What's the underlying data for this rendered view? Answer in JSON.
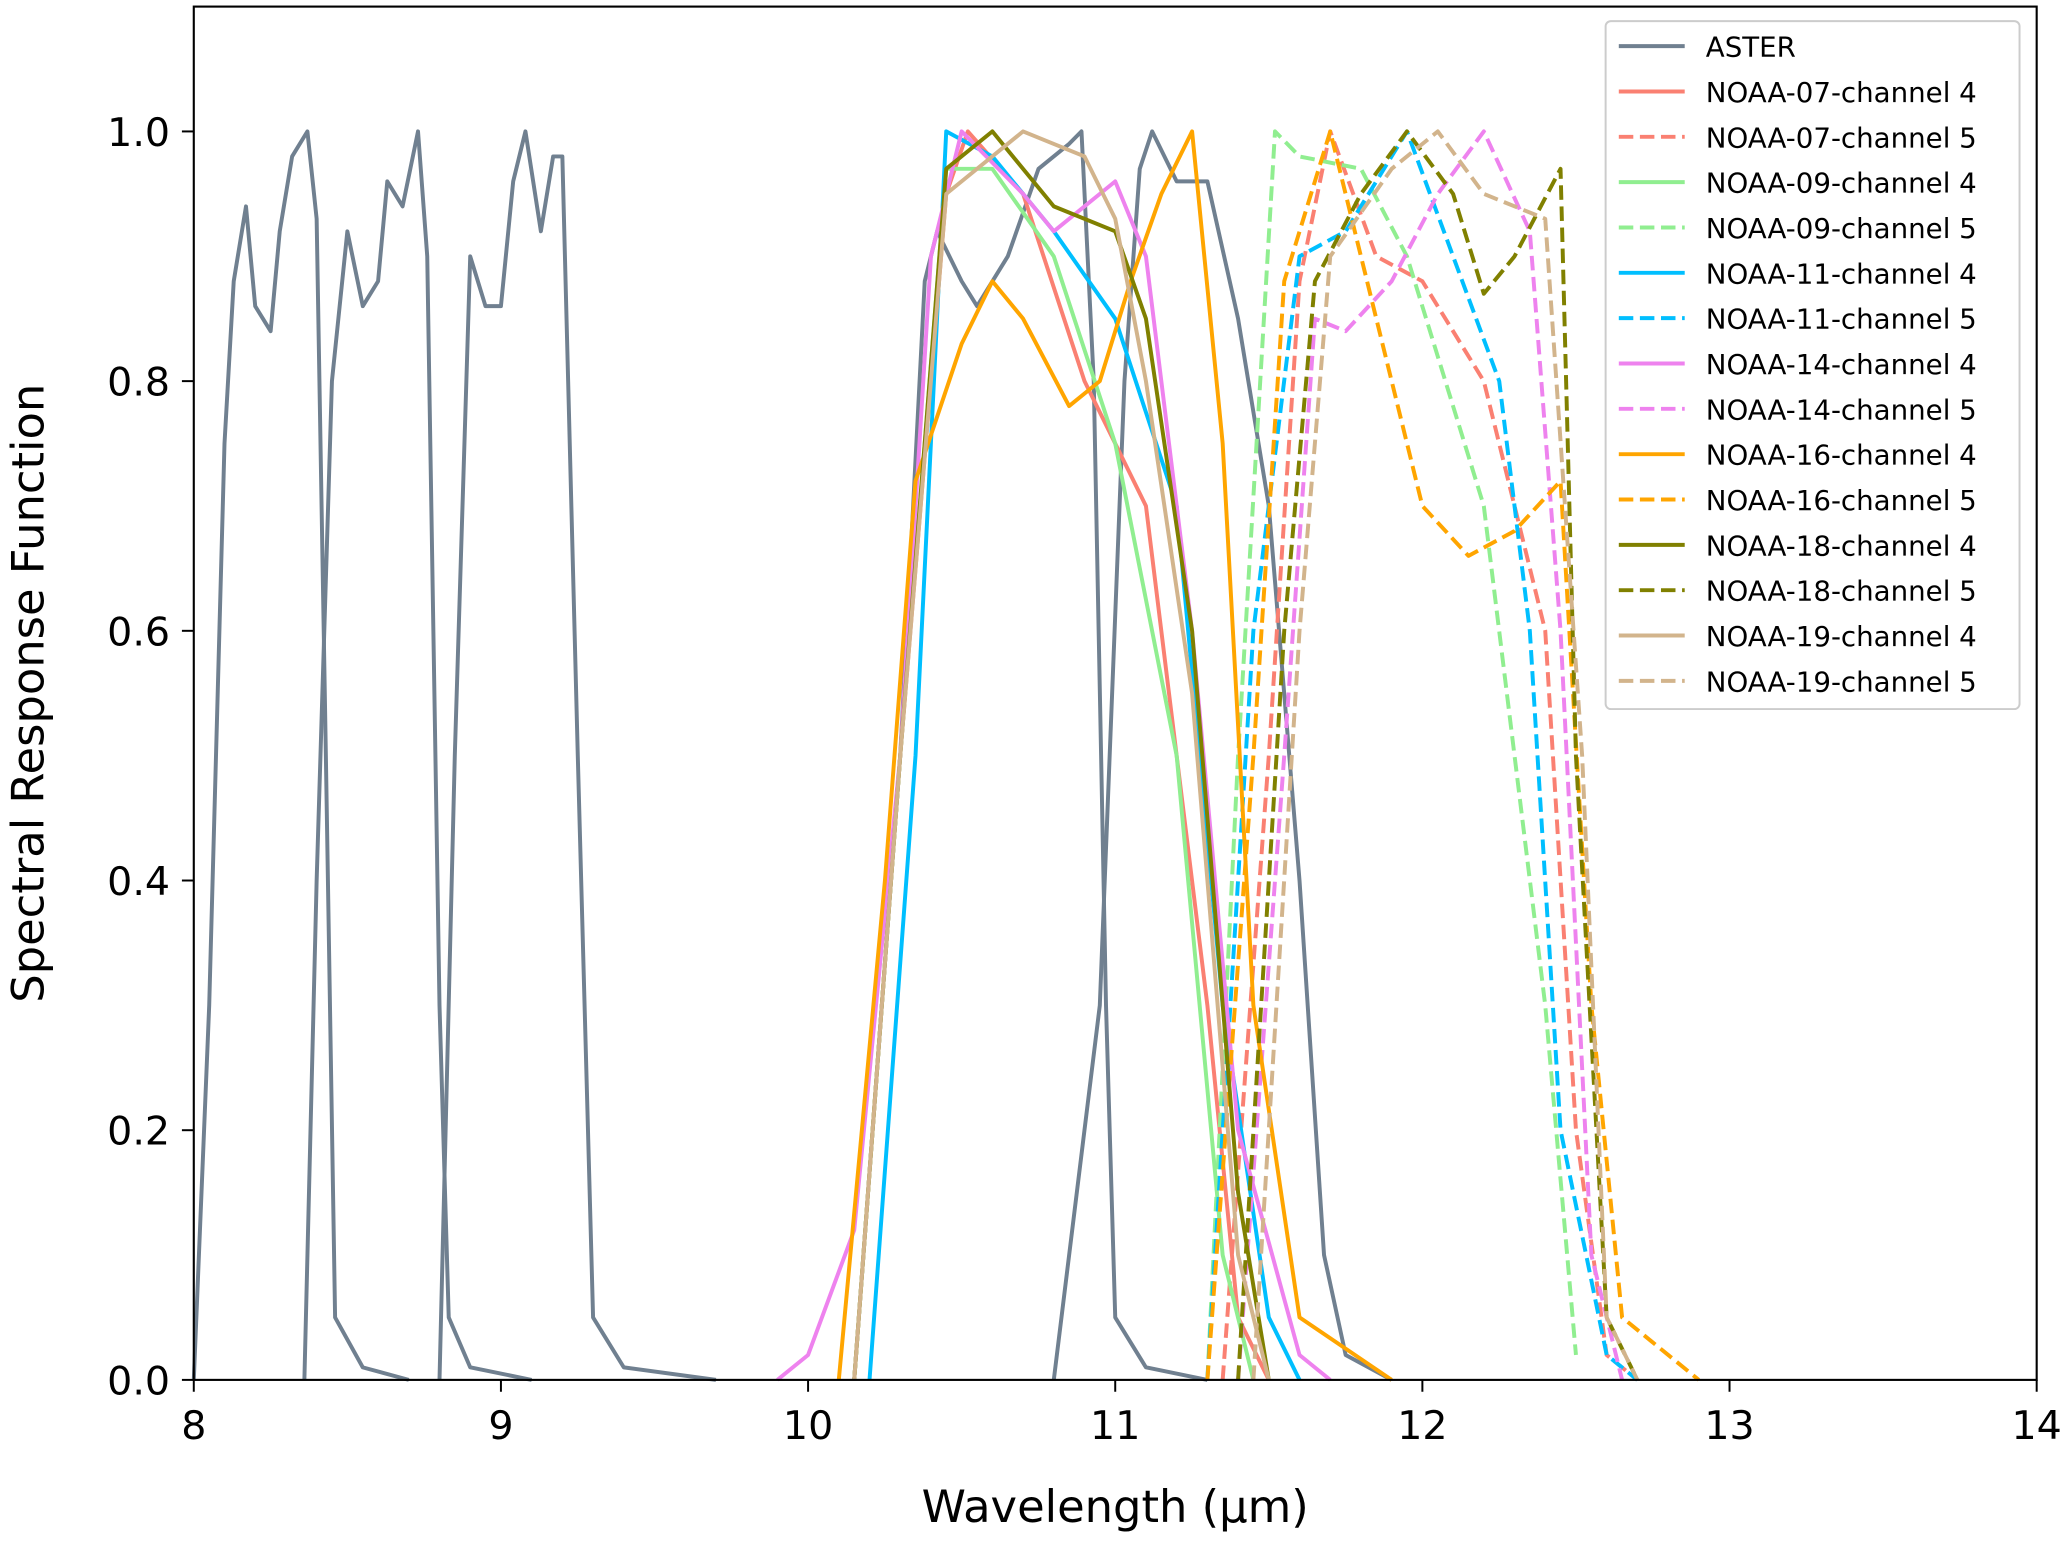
{
  "chart_data": {
    "type": "line",
    "title": "",
    "xlabel": "Wavelength (µm)",
    "ylabel": "Spectral Response Function",
    "xlim": [
      8,
      14
    ],
    "ylim": [
      0,
      1.1
    ],
    "xticks": [
      8,
      9,
      10,
      11,
      12,
      13,
      14
    ],
    "xtick_labels": [
      "8",
      "9",
      "10",
      "11",
      "12",
      "13",
      "14"
    ],
    "yticks": [
      0,
      0.2,
      0.4,
      0.6,
      0.8,
      1.0
    ],
    "ytick_labels": [
      "0.0",
      "0.2",
      "0.4",
      "0.6",
      "0.8",
      "1.0"
    ],
    "grid": false,
    "legend_placement": "top-right",
    "series": [
      {
        "name": "ASTER",
        "color": "#708090",
        "dash": "solid",
        "segments": [
          [
            [
              8.0,
              0
            ],
            [
              8.05,
              0.3
            ],
            [
              8.1,
              0.75
            ],
            [
              8.13,
              0.88
            ],
            [
              8.17,
              0.94
            ],
            [
              8.2,
              0.86
            ],
            [
              8.25,
              0.84
            ],
            [
              8.28,
              0.92
            ],
            [
              8.32,
              0.98
            ],
            [
              8.37,
              1.0
            ],
            [
              8.4,
              0.93
            ],
            [
              8.43,
              0.5
            ],
            [
              8.46,
              0.05
            ],
            [
              8.55,
              0.01
            ],
            [
              8.7,
              0.0
            ]
          ],
          [
            [
              8.36,
              0
            ],
            [
              8.4,
              0.4
            ],
            [
              8.45,
              0.8
            ],
            [
              8.5,
              0.92
            ],
            [
              8.55,
              0.86
            ],
            [
              8.6,
              0.88
            ],
            [
              8.63,
              0.96
            ],
            [
              8.68,
              0.94
            ],
            [
              8.73,
              1.0
            ],
            [
              8.76,
              0.9
            ],
            [
              8.8,
              0.3
            ],
            [
              8.83,
              0.05
            ],
            [
              8.9,
              0.01
            ],
            [
              9.1,
              0
            ]
          ],
          [
            [
              8.8,
              0
            ],
            [
              8.85,
              0.5
            ],
            [
              8.9,
              0.9
            ],
            [
              8.95,
              0.86
            ],
            [
              9.0,
              0.86
            ],
            [
              9.04,
              0.96
            ],
            [
              9.08,
              1.0
            ],
            [
              9.13,
              0.92
            ],
            [
              9.17,
              0.98
            ],
            [
              9.2,
              0.98
            ],
            [
              9.25,
              0.5
            ],
            [
              9.3,
              0.05
            ],
            [
              9.4,
              0.01
            ],
            [
              9.7,
              0
            ]
          ],
          [
            [
              10.15,
              0
            ],
            [
              10.3,
              0.5
            ],
            [
              10.38,
              0.88
            ],
            [
              10.42,
              0.92
            ],
            [
              10.5,
              0.88
            ],
            [
              10.55,
              0.86
            ],
            [
              10.65,
              0.9
            ],
            [
              10.75,
              0.97
            ],
            [
              10.85,
              0.99
            ],
            [
              10.89,
              1.0
            ],
            [
              10.93,
              0.8
            ],
            [
              10.97,
              0.3
            ],
            [
              11.0,
              0.05
            ],
            [
              11.1,
              0.01
            ],
            [
              11.3,
              0
            ]
          ],
          [
            [
              10.8,
              0
            ],
            [
              10.95,
              0.3
            ],
            [
              11.03,
              0.8
            ],
            [
              11.08,
              0.97
            ],
            [
              11.12,
              1.0
            ],
            [
              11.2,
              0.96
            ],
            [
              11.3,
              0.96
            ],
            [
              11.4,
              0.85
            ],
            [
              11.5,
              0.7
            ],
            [
              11.6,
              0.4
            ],
            [
              11.68,
              0.1
            ],
            [
              11.75,
              0.02
            ],
            [
              11.9,
              0
            ]
          ]
        ]
      },
      {
        "name": "NOAA-07-channel 4",
        "color": "#fa8072",
        "dash": "solid",
        "segments": [
          [
            [
              10.15,
              0
            ],
            [
              10.3,
              0.5
            ],
            [
              10.45,
              0.95
            ],
            [
              10.52,
              1.0
            ],
            [
              10.7,
              0.95
            ],
            [
              10.9,
              0.8
            ],
            [
              11.1,
              0.7
            ],
            [
              11.3,
              0.3
            ],
            [
              11.4,
              0.05
            ],
            [
              11.5,
              0
            ]
          ]
        ]
      },
      {
        "name": "NOAA-07-channel 5",
        "color": "#fa8072",
        "dash": "dashed",
        "segments": [
          [
            [
              11.35,
              0
            ],
            [
              11.5,
              0.5
            ],
            [
              11.6,
              0.88
            ],
            [
              11.7,
              1.0
            ],
            [
              11.85,
              0.9
            ],
            [
              12.0,
              0.88
            ],
            [
              12.2,
              0.8
            ],
            [
              12.4,
              0.6
            ],
            [
              12.5,
              0.2
            ],
            [
              12.6,
              0.02
            ],
            [
              12.7,
              0
            ]
          ]
        ]
      },
      {
        "name": "NOAA-09-channel 4",
        "color": "#90ee90",
        "dash": "solid",
        "segments": [
          [
            [
              10.15,
              0
            ],
            [
              10.3,
              0.5
            ],
            [
              10.45,
              0.97
            ],
            [
              10.6,
              0.97
            ],
            [
              10.8,
              0.9
            ],
            [
              11.0,
              0.75
            ],
            [
              11.2,
              0.5
            ],
            [
              11.35,
              0.1
            ],
            [
              11.45,
              0
            ]
          ]
        ]
      },
      {
        "name": "NOAA-09-channel 5",
        "color": "#90ee90",
        "dash": "dashed",
        "segments": [
          [
            [
              11.3,
              0
            ],
            [
              11.4,
              0.5
            ],
            [
              11.52,
              1.0
            ],
            [
              11.6,
              0.98
            ],
            [
              11.8,
              0.97
            ],
            [
              11.95,
              0.9
            ],
            [
              12.2,
              0.7
            ],
            [
              12.4,
              0.3
            ],
            [
              12.5,
              0.02
            ]
          ]
        ]
      },
      {
        "name": "NOAA-11-channel 4",
        "color": "#00bfff",
        "dash": "solid",
        "segments": [
          [
            [
              10.2,
              0
            ],
            [
              10.35,
              0.5
            ],
            [
              10.45,
              1.0
            ],
            [
              10.6,
              0.98
            ],
            [
              10.8,
              0.92
            ],
            [
              11.0,
              0.85
            ],
            [
              11.2,
              0.7
            ],
            [
              11.35,
              0.3
            ],
            [
              11.5,
              0.05
            ],
            [
              11.6,
              0
            ]
          ]
        ]
      },
      {
        "name": "NOAA-11-channel 5",
        "color": "#00bfff",
        "dash": "dashed",
        "segments": [
          [
            [
              11.3,
              0
            ],
            [
              11.45,
              0.6
            ],
            [
              11.6,
              0.9
            ],
            [
              11.75,
              0.92
            ],
            [
              11.95,
              1.0
            ],
            [
              12.1,
              0.9
            ],
            [
              12.25,
              0.8
            ],
            [
              12.35,
              0.6
            ],
            [
              12.45,
              0.2
            ],
            [
              12.6,
              0.02
            ],
            [
              12.7,
              0
            ]
          ]
        ]
      },
      {
        "name": "NOAA-14-channel 4",
        "color": "#ee82ee",
        "dash": "solid",
        "segments": [
          [
            [
              9.9,
              0
            ],
            [
              10.0,
              0.02
            ],
            [
              10.15,
              0.12
            ],
            [
              10.3,
              0.5
            ],
            [
              10.4,
              0.9
            ],
            [
              10.5,
              1.0
            ],
            [
              10.7,
              0.95
            ],
            [
              10.8,
              0.92
            ],
            [
              11.0,
              0.96
            ],
            [
              11.1,
              0.9
            ],
            [
              11.25,
              0.6
            ],
            [
              11.4,
              0.2
            ],
            [
              11.6,
              0.02
            ],
            [
              11.7,
              0
            ]
          ]
        ]
      },
      {
        "name": "NOAA-14-channel 5",
        "color": "#ee82ee",
        "dash": "dashed",
        "segments": [
          [
            [
              11.4,
              0
            ],
            [
              11.55,
              0.5
            ],
            [
              11.65,
              0.85
            ],
            [
              11.75,
              0.84
            ],
            [
              11.9,
              0.88
            ],
            [
              12.05,
              0.95
            ],
            [
              12.2,
              1.0
            ],
            [
              12.35,
              0.92
            ],
            [
              12.45,
              0.6
            ],
            [
              12.55,
              0.1
            ],
            [
              12.65,
              0
            ]
          ]
        ]
      },
      {
        "name": "NOAA-16-channel 4",
        "color": "#ffa500",
        "dash": "solid",
        "segments": [
          [
            [
              10.1,
              0
            ],
            [
              10.25,
              0.4
            ],
            [
              10.35,
              0.72
            ],
            [
              10.5,
              0.83
            ],
            [
              10.6,
              0.88
            ],
            [
              10.7,
              0.85
            ],
            [
              10.85,
              0.78
            ],
            [
              10.95,
              0.8
            ],
            [
              11.05,
              0.88
            ],
            [
              11.15,
              0.95
            ],
            [
              11.25,
              1.0
            ],
            [
              11.35,
              0.75
            ],
            [
              11.45,
              0.3
            ],
            [
              11.6,
              0.05
            ],
            [
              11.9,
              0
            ]
          ]
        ]
      },
      {
        "name": "NOAA-16-channel 5",
        "color": "#ffa500",
        "dash": "dashed",
        "segments": [
          [
            [
              11.3,
              0
            ],
            [
              11.45,
              0.5
            ],
            [
              11.55,
              0.88
            ],
            [
              11.7,
              1.0
            ],
            [
              11.8,
              0.9
            ],
            [
              11.9,
              0.8
            ],
            [
              12.0,
              0.7
            ],
            [
              12.15,
              0.66
            ],
            [
              12.3,
              0.68
            ],
            [
              12.45,
              0.72
            ],
            [
              12.55,
              0.3
            ],
            [
              12.65,
              0.05
            ],
            [
              12.9,
              0
            ]
          ]
        ]
      },
      {
        "name": "NOAA-18-channel 4",
        "color": "#808000",
        "dash": "solid",
        "segments": [
          [
            [
              10.15,
              0
            ],
            [
              10.3,
              0.5
            ],
            [
              10.45,
              0.97
            ],
            [
              10.6,
              1.0
            ],
            [
              10.8,
              0.94
            ],
            [
              11.0,
              0.92
            ],
            [
              11.1,
              0.85
            ],
            [
              11.25,
              0.6
            ],
            [
              11.4,
              0.15
            ],
            [
              11.5,
              0
            ]
          ]
        ]
      },
      {
        "name": "NOAA-18-channel 5",
        "color": "#808000",
        "dash": "dashed",
        "segments": [
          [
            [
              11.4,
              0
            ],
            [
              11.55,
              0.6
            ],
            [
              11.65,
              0.88
            ],
            [
              11.8,
              0.95
            ],
            [
              11.95,
              1.0
            ],
            [
              12.1,
              0.95
            ],
            [
              12.2,
              0.87
            ],
            [
              12.3,
              0.9
            ],
            [
              12.45,
              0.97
            ],
            [
              12.5,
              0.5
            ],
            [
              12.6,
              0.05
            ],
            [
              12.7,
              0
            ]
          ]
        ]
      },
      {
        "name": "NOAA-19-channel 4",
        "color": "#d2b48c",
        "dash": "solid",
        "segments": [
          [
            [
              10.15,
              0
            ],
            [
              10.3,
              0.5
            ],
            [
              10.45,
              0.95
            ],
            [
              10.7,
              1.0
            ],
            [
              10.9,
              0.98
            ],
            [
              11.0,
              0.93
            ],
            [
              11.1,
              0.8
            ],
            [
              11.25,
              0.55
            ],
            [
              11.4,
              0.1
            ],
            [
              11.5,
              0
            ]
          ]
        ]
      },
      {
        "name": "NOAA-19-channel 5",
        "color": "#d2b48c",
        "dash": "dashed",
        "segments": [
          [
            [
              11.45,
              0
            ],
            [
              11.6,
              0.6
            ],
            [
              11.7,
              0.9
            ],
            [
              11.9,
              0.97
            ],
            [
              12.05,
              1.0
            ],
            [
              12.2,
              0.95
            ],
            [
              12.4,
              0.93
            ],
            [
              12.52,
              0.5
            ],
            [
              12.6,
              0.05
            ],
            [
              12.7,
              0
            ]
          ]
        ]
      }
    ]
  }
}
